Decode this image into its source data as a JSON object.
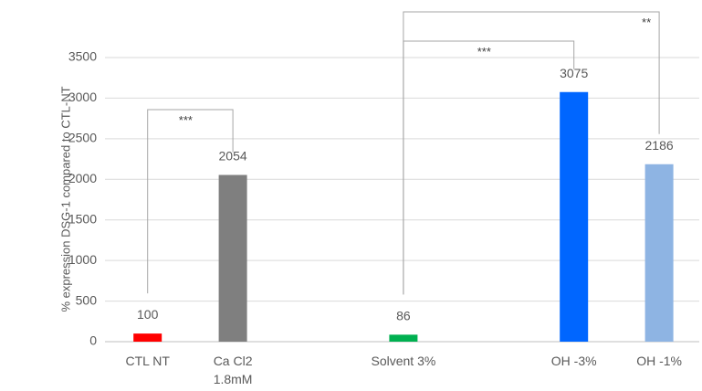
{
  "chart_data": {
    "type": "bar",
    "categories": [
      [
        "CTL NT"
      ],
      [
        "Ca Cl2",
        "1.8mM"
      ],
      [],
      [
        "Solvent 3%"
      ],
      [],
      [
        "OH -3%"
      ],
      [
        "OH -1%"
      ]
    ],
    "values": [
      100,
      2054,
      null,
      86,
      null,
      3075,
      2186
    ],
    "value_labels": [
      "100",
      "2054",
      "",
      "86",
      "",
      "3075",
      "2186"
    ],
    "colors": [
      "#ff0000",
      "#7f7f7f",
      "",
      "#00b050",
      "",
      "#0066ff",
      "#8eb4e3"
    ],
    "ylabel": "% expression  DSG-1 compared to CTL-NT",
    "xlabel": "",
    "ylim": [
      0,
      3500
    ],
    "yticks": [
      0,
      500,
      1000,
      1500,
      2000,
      2500,
      3000,
      3500
    ],
    "grid": "horizontal",
    "legend": "none",
    "significance": [
      {
        "from": 0,
        "to": 1,
        "label": "***"
      },
      {
        "from": 3,
        "to": 5,
        "label": "***"
      },
      {
        "from": 3,
        "to": 6,
        "label": "**"
      }
    ]
  }
}
